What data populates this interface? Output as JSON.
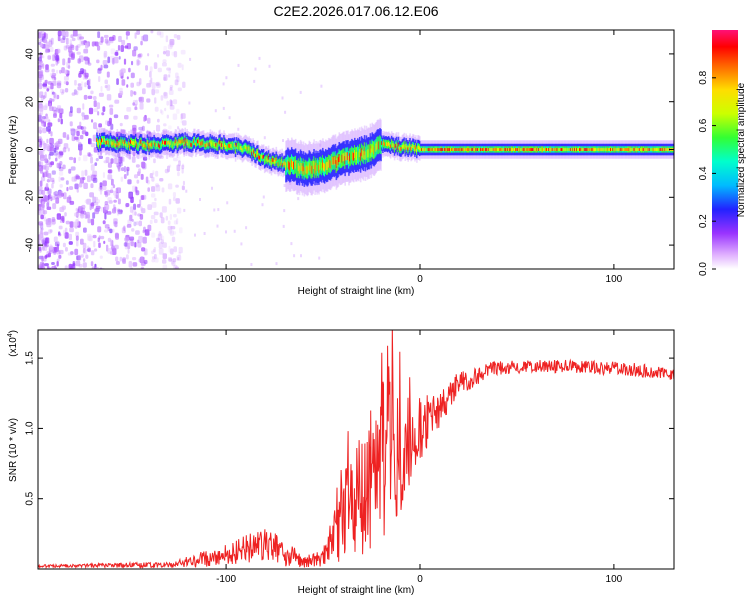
{
  "title": "C2E2.2026.017.06.12.E06",
  "chart_data": [
    {
      "type": "heatmap",
      "name": "spectrogram",
      "xlabel": "Height of straight line (km)",
      "ylabel": "Frequency (Hz)",
      "xlim": [
        -197,
        131
      ],
      "ylim": [
        -50,
        50
      ],
      "xticks": [
        -100,
        0,
        100
      ],
      "yticks": [
        -40,
        -20,
        0,
        20,
        40
      ],
      "signal_track": [
        {
          "x": -165,
          "f": 3
        },
        {
          "x": -140,
          "f": 2
        },
        {
          "x": -120,
          "f": 3
        },
        {
          "x": -100,
          "f": 2
        },
        {
          "x": -90,
          "f": 0
        },
        {
          "x": -80,
          "f": -4
        },
        {
          "x": -70,
          "f": -6
        },
        {
          "x": -60,
          "f": -8
        },
        {
          "x": -50,
          "f": -7
        },
        {
          "x": -40,
          "f": -4
        },
        {
          "x": -30,
          "f": -2
        },
        {
          "x": -20,
          "f": 2
        },
        {
          "x": -10,
          "f": 1
        },
        {
          "x": 0,
          "f": 0
        },
        {
          "x": 131,
          "f": 0
        }
      ],
      "colorbar": {
        "label": "Normalized spectral amplitude",
        "range": [
          0,
          1
        ],
        "ticks": [
          "0.0",
          "0.2",
          "0.4",
          "0.6",
          "0.8"
        ]
      }
    },
    {
      "type": "line",
      "name": "snr",
      "xlabel": "Height of straight line (km)",
      "ylabel": "SNR (10 * v/v)",
      "exponent_label": "(x10",
      "exponent_power": "4",
      "exponent_close": ")",
      "xlim": [
        -197,
        131
      ],
      "ylim": [
        0,
        1.7
      ],
      "xticks": [
        -100,
        0,
        100
      ],
      "yticks": [
        "0.5",
        "1.0",
        "1.5"
      ],
      "series": [
        {
          "name": "SNR",
          "color": "#ee2222",
          "envelope": [
            {
              "x": -197,
              "base": 0.02,
              "noise": 0.01
            },
            {
              "x": -130,
              "base": 0.03,
              "noise": 0.02
            },
            {
              "x": -120,
              "base": 0.05,
              "noise": 0.04
            },
            {
              "x": -100,
              "base": 0.1,
              "noise": 0.08
            },
            {
              "x": -80,
              "base": 0.18,
              "noise": 0.12
            },
            {
              "x": -70,
              "base": 0.12,
              "noise": 0.1
            },
            {
              "x": -60,
              "base": 0.05,
              "noise": 0.04
            },
            {
              "x": -50,
              "base": 0.08,
              "noise": 0.06
            },
            {
              "x": -40,
              "base": 0.35,
              "noise": 0.3
            },
            {
              "x": -30,
              "base": 0.55,
              "noise": 0.45
            },
            {
              "x": -20,
              "base": 0.8,
              "noise": 0.6
            },
            {
              "x": -10,
              "base": 0.8,
              "noise": 0.45
            },
            {
              "x": 0,
              "base": 1.0,
              "noise": 0.25
            },
            {
              "x": 10,
              "base": 1.15,
              "noise": 0.15
            },
            {
              "x": 20,
              "base": 1.32,
              "noise": 0.08
            },
            {
              "x": 40,
              "base": 1.43,
              "noise": 0.05
            },
            {
              "x": 60,
              "base": 1.45,
              "noise": 0.05
            },
            {
              "x": 90,
              "base": 1.43,
              "noise": 0.05
            },
            {
              "x": 110,
              "base": 1.42,
              "noise": 0.05
            },
            {
              "x": 131,
              "base": 1.38,
              "noise": 0.04
            }
          ]
        }
      ]
    }
  ]
}
